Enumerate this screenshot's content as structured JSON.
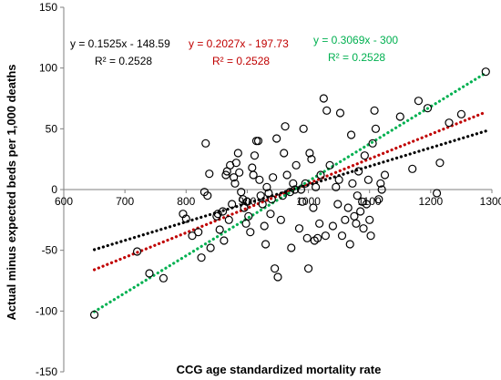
{
  "chart_data": {
    "type": "scatter",
    "xlabel": "CCG age standardized mortality rate",
    "ylabel": "Actual minus expected beds per 1,000 deaths",
    "xlim": [
      600,
      1300
    ],
    "ylim": [
      -150,
      150
    ],
    "x_ticks": [
      600,
      700,
      800,
      900,
      1000,
      1100,
      1200,
      1300
    ],
    "y_ticks": [
      -150,
      -100,
      -50,
      0,
      50,
      100,
      150
    ],
    "x_tick_labels": [
      "600",
      "700",
      "800",
      "900",
      "1000",
      "1100",
      "1200",
      "1300"
    ],
    "y_tick_labels": [
      "-150",
      "-100",
      "-50",
      "0",
      "50",
      "100",
      "150"
    ],
    "grid": false,
    "marker": "open-circle",
    "points": [
      [
        650,
        -103
      ],
      [
        720,
        -51
      ],
      [
        740,
        -69
      ],
      [
        763,
        -73
      ],
      [
        795,
        -20
      ],
      [
        800,
        -24
      ],
      [
        810,
        -38
      ],
      [
        820,
        -35
      ],
      [
        825,
        -56
      ],
      [
        830,
        -2
      ],
      [
        832,
        38
      ],
      [
        835,
        -5
      ],
      [
        838,
        13
      ],
      [
        840,
        -48
      ],
      [
        850,
        -22
      ],
      [
        852,
        -20
      ],
      [
        855,
        -33
      ],
      [
        860,
        -18
      ],
      [
        862,
        -42
      ],
      [
        865,
        12
      ],
      [
        867,
        15
      ],
      [
        870,
        -25
      ],
      [
        872,
        20
      ],
      [
        875,
        -12
      ],
      [
        878,
        10
      ],
      [
        880,
        5
      ],
      [
        882,
        22
      ],
      [
        885,
        30
      ],
      [
        887,
        14
      ],
      [
        890,
        -2
      ],
      [
        893,
        -8
      ],
      [
        895,
        -15
      ],
      [
        898,
        -28
      ],
      [
        900,
        -10
      ],
      [
        902,
        -22
      ],
      [
        905,
        -35
      ],
      [
        908,
        18
      ],
      [
        910,
        12
      ],
      [
        912,
        28
      ],
      [
        915,
        40
      ],
      [
        918,
        40
      ],
      [
        920,
        8
      ],
      [
        922,
        -5
      ],
      [
        925,
        -12
      ],
      [
        928,
        -30
      ],
      [
        930,
        -45
      ],
      [
        932,
        2
      ],
      [
        935,
        -3
      ],
      [
        938,
        -20
      ],
      [
        940,
        -8
      ],
      [
        942,
        10
      ],
      [
        945,
        -65
      ],
      [
        948,
        42
      ],
      [
        950,
        -72
      ],
      [
        955,
        -25
      ],
      [
        958,
        -5
      ],
      [
        960,
        30
      ],
      [
        962,
        52
      ],
      [
        965,
        12
      ],
      [
        970,
        -2
      ],
      [
        972,
        -48
      ],
      [
        975,
        5
      ],
      [
        978,
        0
      ],
      [
        980,
        20
      ],
      [
        985,
        -32
      ],
      [
        988,
        0
      ],
      [
        990,
        -10
      ],
      [
        992,
        50
      ],
      [
        995,
        5
      ],
      [
        998,
        -40
      ],
      [
        1000,
        -65
      ],
      [
        1002,
        30
      ],
      [
        1005,
        25
      ],
      [
        1008,
        -15
      ],
      [
        1010,
        -42
      ],
      [
        1012,
        2
      ],
      [
        1015,
        -40
      ],
      [
        1018,
        -28
      ],
      [
        1020,
        12
      ],
      [
        1025,
        75
      ],
      [
        1028,
        -38
      ],
      [
        1030,
        65
      ],
      [
        1035,
        20
      ],
      [
        1040,
        -30
      ],
      [
        1045,
        2
      ],
      [
        1048,
        -12
      ],
      [
        1050,
        8
      ],
      [
        1052,
        63
      ],
      [
        1055,
        -38
      ],
      [
        1060,
        -25
      ],
      [
        1065,
        -15
      ],
      [
        1068,
        -45
      ],
      [
        1070,
        45
      ],
      [
        1072,
        5
      ],
      [
        1075,
        -22
      ],
      [
        1078,
        -28
      ],
      [
        1080,
        -5
      ],
      [
        1082,
        15
      ],
      [
        1085,
        -18
      ],
      [
        1088,
        -10
      ],
      [
        1090,
        -32
      ],
      [
        1092,
        28
      ],
      [
        1095,
        -12
      ],
      [
        1098,
        8
      ],
      [
        1100,
        -25
      ],
      [
        1102,
        -38
      ],
      [
        1105,
        38
      ],
      [
        1108,
        65
      ],
      [
        1110,
        50
      ],
      [
        1115,
        -8
      ],
      [
        1118,
        5
      ],
      [
        1120,
        0
      ],
      [
        1125,
        12
      ],
      [
        1150,
        60
      ],
      [
        1170,
        17
      ],
      [
        1180,
        73
      ],
      [
        1195,
        67
      ],
      [
        1210,
        -3
      ],
      [
        1215,
        22
      ],
      [
        1230,
        55
      ],
      [
        1250,
        62
      ],
      [
        1290,
        97
      ]
    ],
    "trendlines": [
      {
        "equation": "y = 0.1525x - 148.59",
        "r2": "R² = 0.2528",
        "slope": 0.1525,
        "intercept": -148.59,
        "color": "#000000"
      },
      {
        "equation": "y = 0.2027x - 197.73",
        "r2": "R² = 0.2528",
        "slope": 0.2027,
        "intercept": -197.73,
        "color": "#c00000"
      },
      {
        "equation": "y = 0.3069x - 300",
        "r2": "R² = 0.2528",
        "slope": 0.3069,
        "intercept": -300,
        "color": "#00b050"
      }
    ],
    "trendline_x_range": [
      650,
      1290
    ]
  }
}
